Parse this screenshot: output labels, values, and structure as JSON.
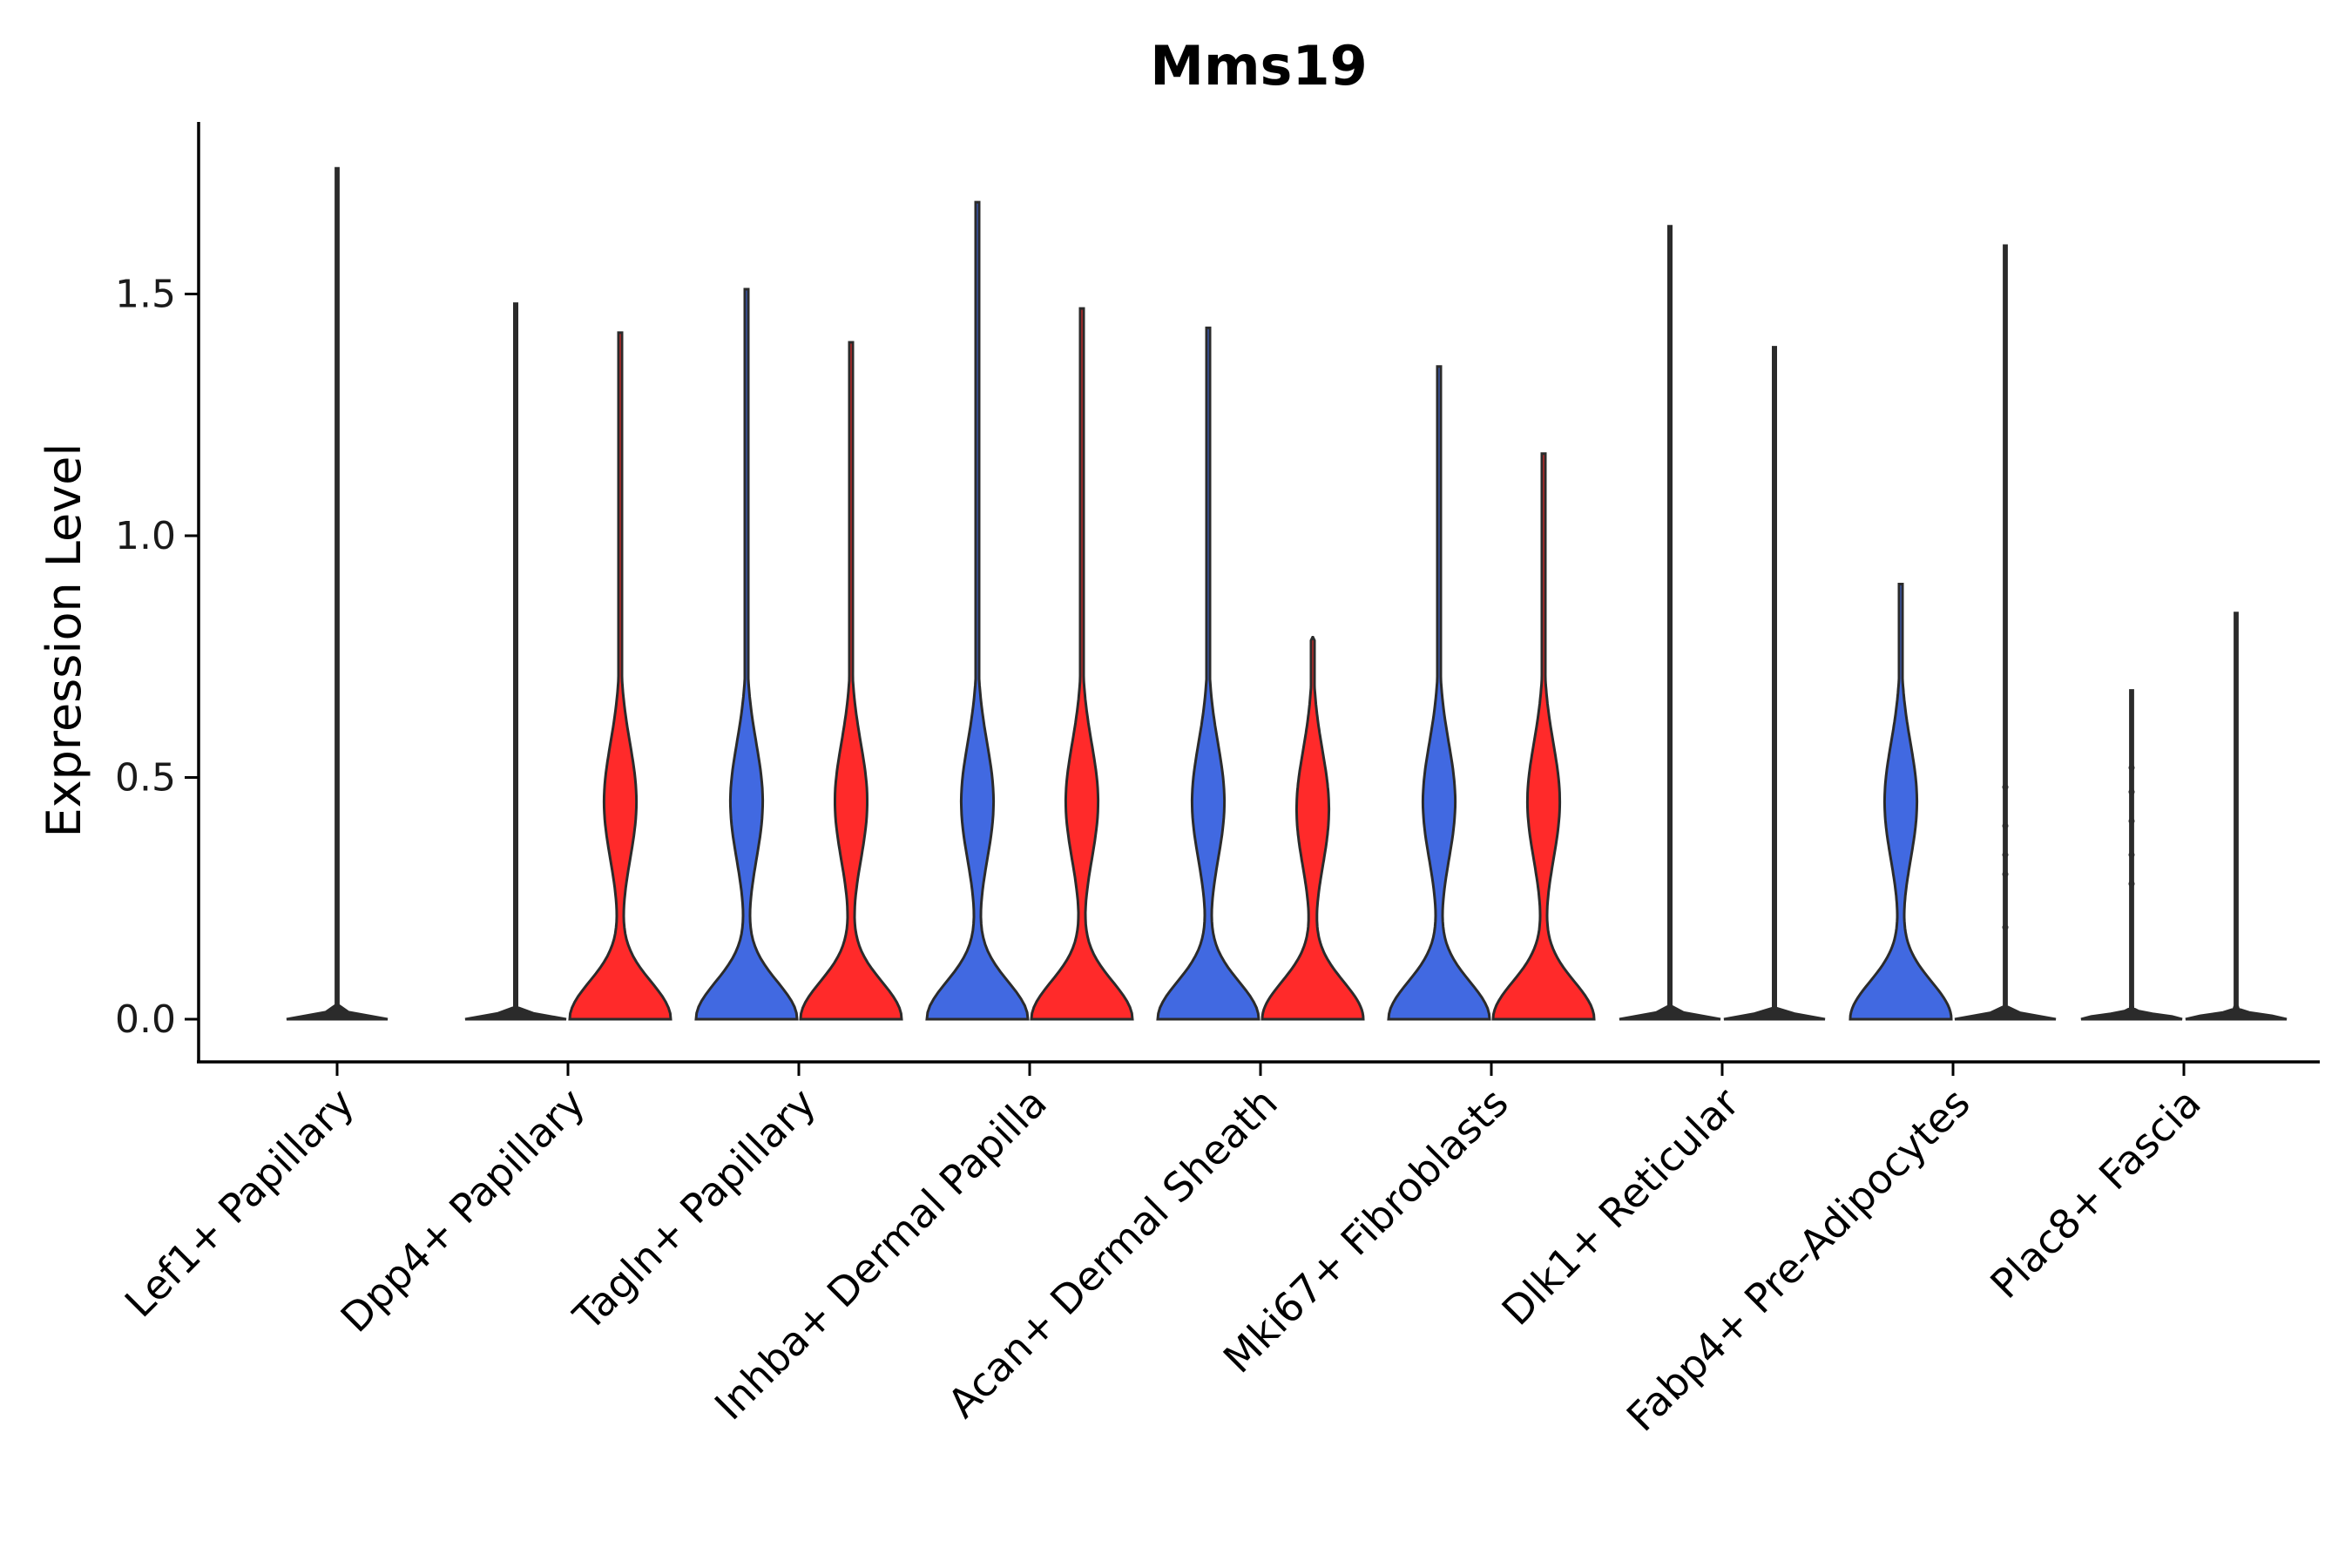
{
  "chart_data": {
    "type": "violin",
    "title": "Mms19",
    "xlabel": "",
    "ylabel": "Expression Level",
    "ylim": [
      -0.09,
      1.85
    ],
    "yticks": [
      0.0,
      0.5,
      1.0,
      1.5
    ],
    "ytick_labels": [
      "0.0",
      "0.5",
      "1.0",
      "1.5"
    ],
    "categories": [
      "Lef1+ Papillary",
      "Dpp4+ Papillary",
      "Tagln+ Papillary",
      "Inhba+ Dermal Papilla",
      "Acan+ Dermal Sheath",
      "Mki67+ Fibroblasts",
      "Dlk1+ Reticular",
      "Fabp4+ Pre-Adipocytes",
      "Plac8+ Fascia"
    ],
    "colors": {
      "blue": "#4169E1",
      "red": "#FF2A2A"
    },
    "series": [
      {
        "name": "blue",
        "color": "#4169E1",
        "max": [
          1.76,
          1.48,
          1.51,
          1.69,
          1.43,
          1.35,
          1.64,
          0.9,
          0.68
        ],
        "shape": [
          "flat",
          "flat",
          "bimodal",
          "bimodal",
          "bimodal",
          "bimodal",
          "flat",
          "bimodal",
          "flat"
        ]
      },
      {
        "name": "red",
        "color": "#FF2A2A",
        "max": [
          null,
          1.42,
          1.4,
          1.47,
          0.79,
          1.17,
          1.39,
          1.6,
          0.84
        ],
        "shape": [
          null,
          "bimodal",
          "bimodal",
          "bimodal",
          "bimodal",
          "bimodal",
          "flat",
          "flat",
          "flat"
        ]
      }
    ],
    "points": [
      {
        "category": "Fabp4+ Pre-Adipocytes",
        "series": "red",
        "values": [
          0.48,
          0.4,
          0.34,
          0.3,
          0.19
        ]
      },
      {
        "category": "Plac8+ Fascia",
        "series": "blue",
        "values": [
          0.52,
          0.47,
          0.41,
          0.34,
          0.28
        ]
      }
    ],
    "legend": "none"
  }
}
